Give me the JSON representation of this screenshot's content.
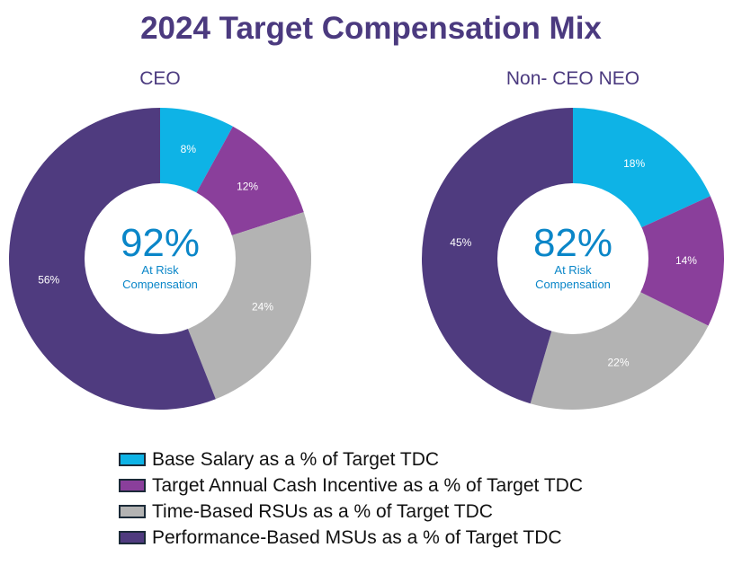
{
  "chart_data": [
    {
      "type": "pie",
      "title": "CEO",
      "donut": true,
      "center_value": "92%",
      "center_label": [
        "At Risk",
        "Compensation"
      ],
      "categories": [
        "Base Salary as a % of Target TDC",
        "Target Annual Cash Incentive as a % of Target TDC",
        "Time-Based RSUs as a % of Target TDC",
        "Performance-Based MSUs as a % of Target TDC"
      ],
      "values": [
        8,
        12,
        24,
        56
      ],
      "labels": [
        "8%",
        "12%",
        "24%",
        "56%"
      ]
    },
    {
      "type": "pie",
      "title": "Non- CEO NEO",
      "donut": true,
      "center_value": "82%",
      "center_label": [
        "At Risk",
        "Compensation"
      ],
      "categories": [
        "Base Salary as a % of Target TDC",
        "Target Annual Cash Incentive as a % of Target TDC",
        "Time-Based RSUs as a % of Target TDC",
        "Performance-Based MSUs as a % of Target TDC"
      ],
      "values": [
        18,
        14,
        22,
        45
      ],
      "labels": [
        "18%",
        "14%",
        "22%",
        "45%"
      ]
    }
  ],
  "page_title": "2024 Target Compensation Mix",
  "legend": [
    {
      "label": "Base Salary as a % of Target TDC",
      "color": "#0eb3e6"
    },
    {
      "label": "Target Annual Cash Incentive as a % of Target TDC",
      "color": "#8a3f9b"
    },
    {
      "label": "Time-Based RSUs as a % of Target TDC",
      "color": "#b3b3b3"
    },
    {
      "label": "Performance-Based MSUs as a % of Target TDC",
      "color": "#4f3b7f"
    }
  ],
  "colors": {
    "title": "#4b3a7f",
    "center_text": "#0a86c8"
  }
}
